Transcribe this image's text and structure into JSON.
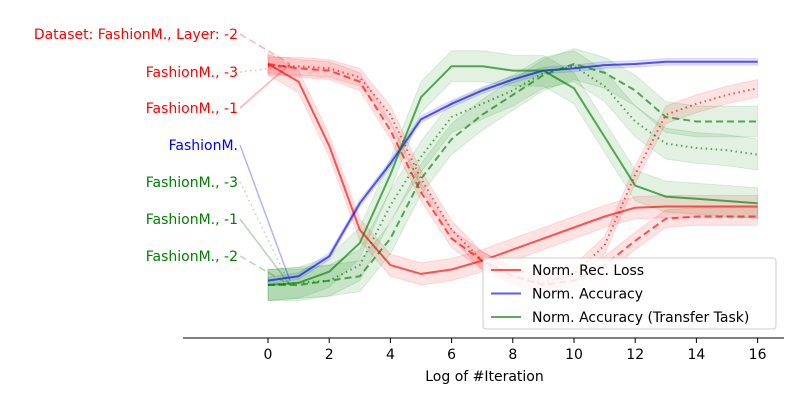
{
  "chart_data": {
    "type": "line",
    "title": "",
    "xlabel": "Log of #Iteration",
    "ylabel": "",
    "xlim": [
      -1,
      16.9
    ],
    "ylim": [
      -0.18,
      1.12
    ],
    "x": [
      0,
      1,
      2,
      3,
      4,
      5,
      6,
      7,
      8,
      9,
      10,
      11,
      12,
      13,
      14,
      15,
      16
    ],
    "xticks": [
      "0",
      "2",
      "4",
      "6",
      "8",
      "10",
      "12",
      "14",
      "16"
    ],
    "colors": {
      "loss": "#ff0000",
      "accuracy": "#0000ff",
      "transfer": "#008000"
    },
    "legend": {
      "position": "lower-right",
      "entries": [
        {
          "label": "Norm. Rec. Loss",
          "color": "#ff0000"
        },
        {
          "label": "Norm. Accuracy",
          "color": "#0000ff"
        },
        {
          "label": "Norm. Accuracy (Transfer Task)",
          "color": "#008000"
        }
      ]
    },
    "series": [
      {
        "name": "Norm. Rec. Loss (Layer -1)",
        "kind": "loss",
        "style": "solid",
        "values": [
          1.0,
          0.92,
          0.63,
          0.25,
          0.09,
          0.05,
          0.07,
          0.11,
          0.16,
          0.21,
          0.26,
          0.31,
          0.35,
          0.355,
          0.355,
          0.355,
          0.355
        ],
        "band": 0.05
      },
      {
        "name": "Norm. Rec. Loss (Layer -2)",
        "kind": "loss",
        "style": "dashed",
        "values": [
          1.0,
          0.98,
          0.97,
          0.92,
          0.7,
          0.42,
          0.21,
          0.11,
          0.04,
          0.0,
          0.02,
          0.09,
          0.2,
          0.3,
          0.31,
          0.31,
          0.31
        ],
        "band": 0.04
      },
      {
        "name": "Norm. Rec. Loss (Layer -3)",
        "kind": "loss",
        "style": "dotted",
        "values": [
          0.99,
          0.99,
          0.98,
          0.94,
          0.77,
          0.48,
          0.25,
          0.11,
          0.04,
          0.01,
          0.05,
          0.18,
          0.5,
          0.77,
          0.82,
          0.86,
          0.89
        ],
        "band": 0.04
      },
      {
        "name": "Norm. Accuracy (FashionM.)",
        "kind": "accuracy",
        "style": "solid",
        "values": [
          0.02,
          0.04,
          0.13,
          0.37,
          0.55,
          0.75,
          0.82,
          0.88,
          0.93,
          0.97,
          0.98,
          0.995,
          1.0,
          1.01,
          1.01,
          1.01,
          1.01
        ],
        "band": 0.015
      },
      {
        "name": "Norm. Accuracy Transfer (Layer -1)",
        "kind": "transfer",
        "style": "solid",
        "values": [
          0.0,
          0.01,
          0.06,
          0.19,
          0.5,
          0.85,
          0.99,
          0.99,
          0.97,
          0.97,
          0.89,
          0.67,
          0.45,
          0.4,
          0.39,
          0.38,
          0.37
        ],
        "band": 0.07
      },
      {
        "name": "Norm. Accuracy Transfer (Layer -2)",
        "kind": "transfer",
        "style": "dashed",
        "values": [
          0.0,
          0.0,
          0.02,
          0.04,
          0.21,
          0.48,
          0.66,
          0.77,
          0.86,
          0.95,
          1.0,
          0.96,
          0.88,
          0.76,
          0.74,
          0.74,
          0.74
        ],
        "band": 0.07
      },
      {
        "name": "Norm. Accuracy Transfer (Layer -3)",
        "kind": "transfer",
        "style": "dotted",
        "values": [
          0.0,
          0.01,
          0.02,
          0.09,
          0.36,
          0.58,
          0.76,
          0.82,
          0.88,
          0.96,
          0.99,
          0.9,
          0.74,
          0.64,
          0.62,
          0.61,
          0.59
        ],
        "band": 0.07
      }
    ],
    "series_labels": [
      {
        "text": "Dataset: FashionM., Layer: -2",
        "color": "#ff0000",
        "series": 1,
        "style": "dashed"
      },
      {
        "text": "FashionM., -3",
        "color": "#ff0000",
        "series": 2,
        "style": "dotted"
      },
      {
        "text": "FashionM., -1",
        "color": "#ff0000",
        "series": 0,
        "style": "solid"
      },
      {
        "text": "FashionM.",
        "color": "#0000ff",
        "series": 3,
        "style": "solid"
      },
      {
        "text": "FashionM., -3",
        "color": "#008000",
        "series": 6,
        "style": "dotted"
      },
      {
        "text": "FashionM., -1",
        "color": "#008000",
        "series": 4,
        "style": "solid"
      },
      {
        "text": "FashionM., -2",
        "color": "#008000",
        "series": 5,
        "style": "dashed"
      }
    ]
  }
}
